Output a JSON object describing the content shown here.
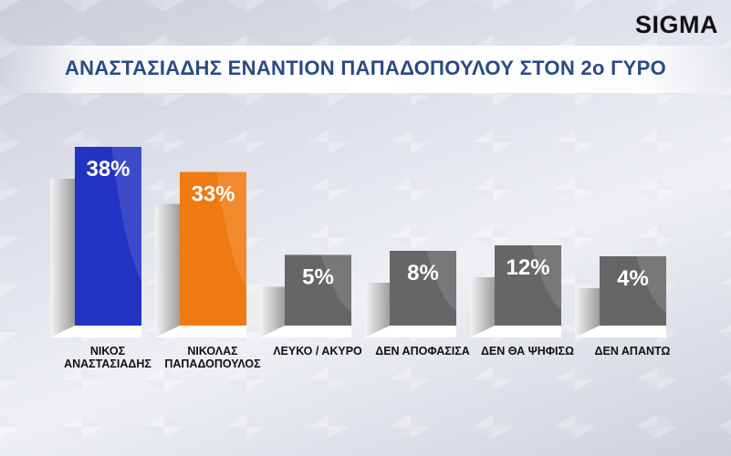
{
  "logo": "SIGMA",
  "chart_data": {
    "type": "bar",
    "title": "ΑΝΑΣΤΑΣΙΑΔΗΣ ΕΝΑΝΤΙΟΝ ΠΑΠΑΔΟΠΟΥΛΟΥ ΣΤΟΝ 2ο ΓΥΡΟ",
    "categories": [
      "ΝΙΚΟΣ\nΑΝΑΣΤΑΣΙΑΔΗΣ",
      "ΝΙΚΟΛΑΣ\nΠΑΠΑΔΟΠΟΥΛΟΣ",
      "ΛΕΥΚΟ / ΑΚΥΡΟ",
      "ΔΕΝ ΑΠΟΦΑΣΙΣΑ",
      "ΔΕΝ ΘΑ ΨΗΦΙΣΩ",
      "ΔΕΝ ΑΠΑΝΤΩ"
    ],
    "values": [
      38,
      33,
      5,
      8,
      12,
      4
    ],
    "value_labels": [
      "38%",
      "33%",
      "5%",
      "8%",
      "12%",
      "4%"
    ],
    "colors": [
      "#2333c4",
      "#f07a10",
      "#666666",
      "#666666",
      "#666666",
      "#666666"
    ],
    "unit": "%"
  }
}
